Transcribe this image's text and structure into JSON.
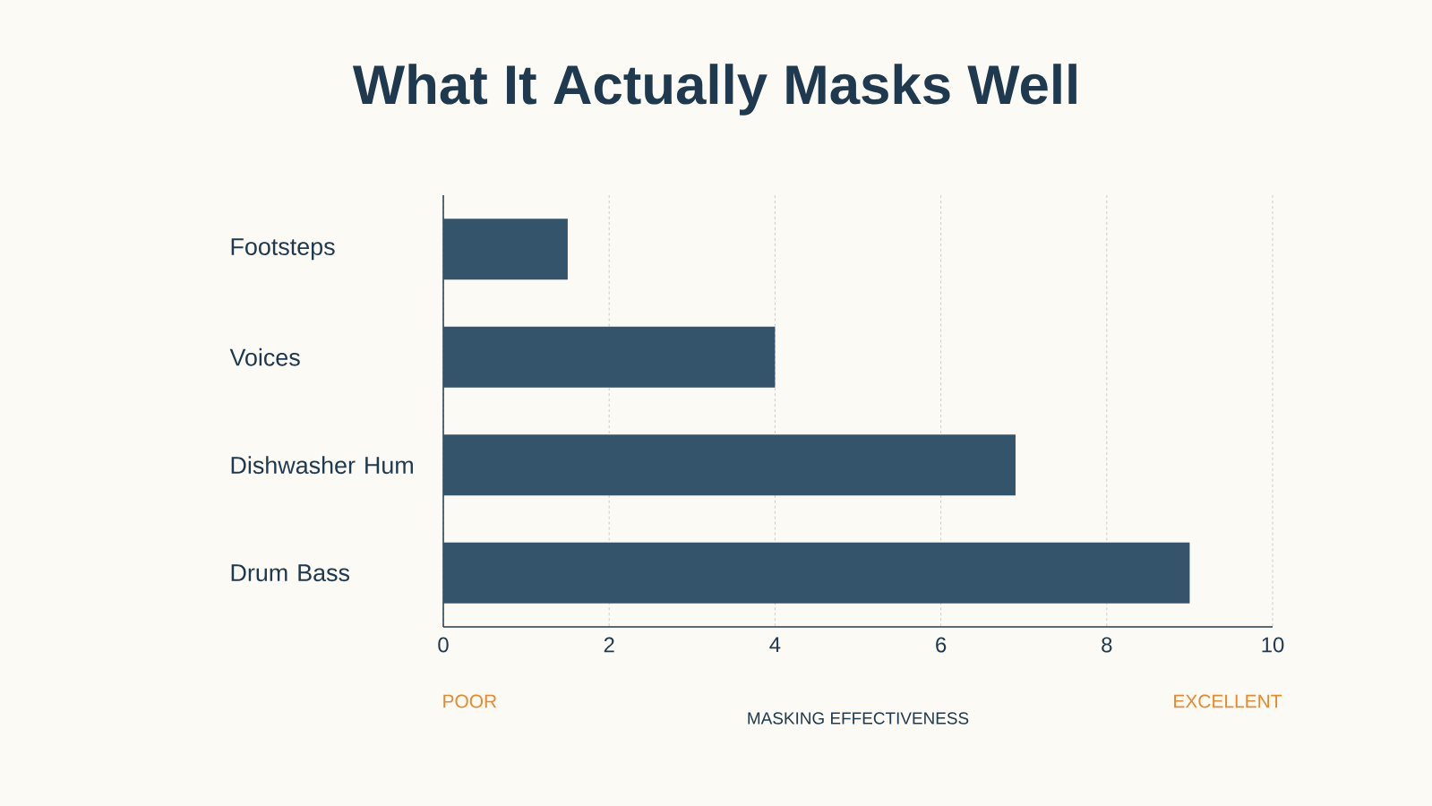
{
  "chart_data": {
    "type": "bar",
    "orientation": "horizontal",
    "title": "What It Actually Masks Well",
    "categories": [
      "Footsteps",
      "Voices",
      "Dishwasher Hum",
      "Drum Bass"
    ],
    "values": [
      1.5,
      4,
      6.9,
      9
    ],
    "color": "#34546b",
    "xlim": [
      0,
      10
    ],
    "xticks": [
      0,
      2,
      4,
      6,
      8,
      10
    ],
    "grid": "x",
    "xlabel": "MASKING EFFECTIVENESS",
    "annotations": [
      "POOR",
      "EXCELLENT"
    ]
  }
}
